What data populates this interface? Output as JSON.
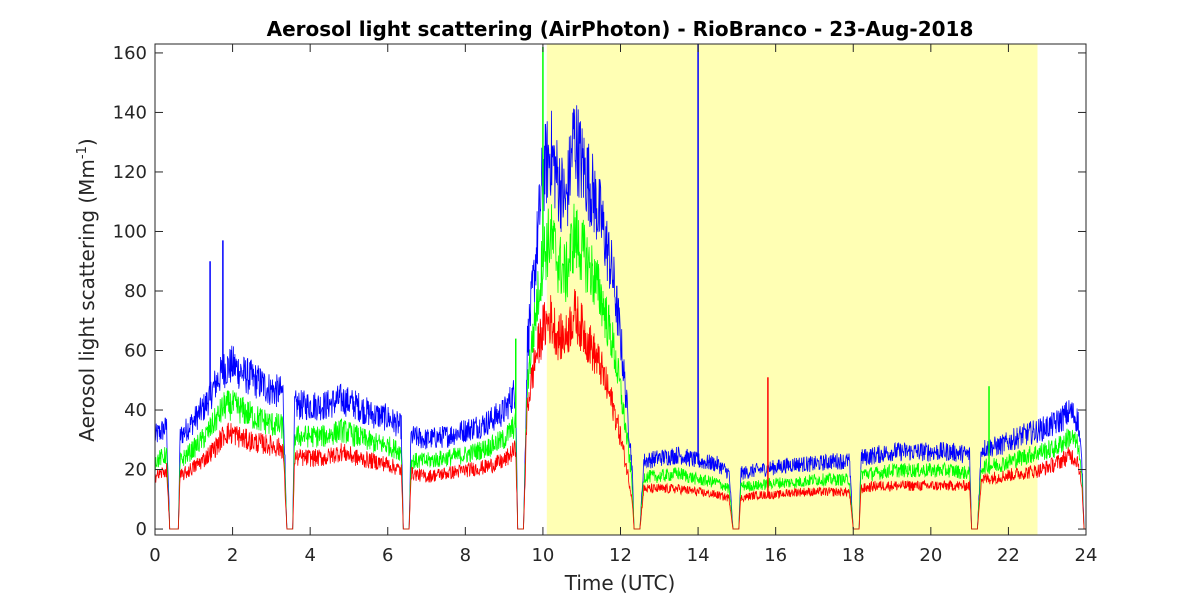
{
  "chart_data": {
    "type": "line",
    "title": "Aerosol light scattering (AirPhoton) - RioBranco - 23-Aug-2018",
    "xlabel": "Time (UTC)",
    "ylabel_main": "Aerosol light scattering (Mm",
    "ylabel_sup": "-1",
    "ylabel_close": ")",
    "xlim": [
      0,
      24
    ],
    "ylim": [
      -2,
      163
    ],
    "x_ticks": [
      0,
      2,
      4,
      6,
      8,
      10,
      12,
      14,
      16,
      18,
      20,
      22,
      24
    ],
    "y_ticks": [
      0,
      20,
      40,
      60,
      80,
      100,
      120,
      140,
      160
    ],
    "daylight_shading": {
      "x_start": 10.1,
      "x_end": 22.75,
      "color": "#ffffb4"
    },
    "grid": false,
    "legend": "none",
    "series": [
      {
        "color": "#0000ff",
        "points": [
          [
            0,
            30
          ],
          [
            0.3,
            33
          ],
          [
            0.38,
            0
          ],
          [
            0.6,
            0
          ],
          [
            0.65,
            30
          ],
          [
            1,
            35
          ],
          [
            1.3,
            40
          ],
          [
            1.6,
            48
          ],
          [
            1.8,
            52
          ],
          [
            2,
            53
          ],
          [
            2.3,
            50
          ],
          [
            2.6,
            48
          ],
          [
            3,
            45
          ],
          [
            3.3,
            44
          ],
          [
            3.4,
            0
          ],
          [
            3.55,
            0
          ],
          [
            3.6,
            40
          ],
          [
            4,
            40
          ],
          [
            4.4,
            40
          ],
          [
            4.8,
            42
          ],
          [
            5.2,
            40
          ],
          [
            5.6,
            37
          ],
          [
            6,
            36
          ],
          [
            6.35,
            33
          ],
          [
            6.4,
            0
          ],
          [
            6.55,
            0
          ],
          [
            6.6,
            30
          ],
          [
            7,
            29
          ],
          [
            7.5,
            30
          ],
          [
            8,
            32
          ],
          [
            8.5,
            34
          ],
          [
            9,
            38
          ],
          [
            9.3,
            45
          ],
          [
            9.35,
            0
          ],
          [
            9.5,
            0
          ],
          [
            9.6,
            60
          ],
          [
            9.8,
            85
          ],
          [
            10,
            115
          ],
          [
            10.2,
            122
          ],
          [
            10.4,
            112
          ],
          [
            10.6,
            105
          ],
          [
            10.8,
            128
          ],
          [
            11,
            118
          ],
          [
            11.2,
            112
          ],
          [
            11.5,
            100
          ],
          [
            11.8,
            82
          ],
          [
            12,
            62
          ],
          [
            12.2,
            35
          ],
          [
            12.3,
            20
          ],
          [
            12.35,
            0
          ],
          [
            12.5,
            0
          ],
          [
            12.6,
            22
          ],
          [
            13,
            23
          ],
          [
            13.5,
            24
          ],
          [
            14,
            22
          ],
          [
            14.5,
            21
          ],
          [
            14.8,
            18
          ],
          [
            14.9,
            0
          ],
          [
            15.05,
            0
          ],
          [
            15.1,
            18
          ],
          [
            15.5,
            19
          ],
          [
            16,
            20
          ],
          [
            16.5,
            21
          ],
          [
            17,
            21
          ],
          [
            17.5,
            22
          ],
          [
            17.9,
            22
          ],
          [
            18,
            0
          ],
          [
            18.15,
            0
          ],
          [
            18.2,
            23
          ],
          [
            18.6,
            24
          ],
          [
            19,
            25
          ],
          [
            19.5,
            25
          ],
          [
            20,
            25
          ],
          [
            20.5,
            25
          ],
          [
            21,
            24
          ],
          [
            21.05,
            0
          ],
          [
            21.2,
            0
          ],
          [
            21.3,
            26
          ],
          [
            21.8,
            27
          ],
          [
            22.3,
            30
          ],
          [
            22.8,
            32
          ],
          [
            23.2,
            34
          ],
          [
            23.6,
            38
          ],
          [
            23.8,
            35
          ],
          [
            23.9,
            20
          ],
          [
            23.95,
            0
          ],
          [
            24,
            0
          ]
        ]
      },
      {
        "color": "#00ff00",
        "points": [
          [
            0,
            22
          ],
          [
            0.3,
            24
          ],
          [
            0.38,
            0
          ],
          [
            0.6,
            0
          ],
          [
            0.65,
            22
          ],
          [
            1,
            26
          ],
          [
            1.3,
            30
          ],
          [
            1.6,
            36
          ],
          [
            1.8,
            40
          ],
          [
            2,
            40
          ],
          [
            2.3,
            38
          ],
          [
            2.6,
            36
          ],
          [
            3,
            34
          ],
          [
            3.3,
            33
          ],
          [
            3.4,
            0
          ],
          [
            3.55,
            0
          ],
          [
            3.6,
            30
          ],
          [
            4,
            30
          ],
          [
            4.4,
            30
          ],
          [
            4.8,
            32
          ],
          [
            5.2,
            30
          ],
          [
            5.6,
            28
          ],
          [
            6,
            27
          ],
          [
            6.35,
            25
          ],
          [
            6.4,
            0
          ],
          [
            6.55,
            0
          ],
          [
            6.6,
            22
          ],
          [
            7,
            22
          ],
          [
            7.5,
            23
          ],
          [
            8,
            24
          ],
          [
            8.5,
            26
          ],
          [
            9,
            29
          ],
          [
            9.3,
            34
          ],
          [
            9.35,
            0
          ],
          [
            9.5,
            0
          ],
          [
            9.6,
            48
          ],
          [
            9.8,
            68
          ],
          [
            10,
            88
          ],
          [
            10.2,
            95
          ],
          [
            10.4,
            86
          ],
          [
            10.6,
            82
          ],
          [
            10.8,
            95
          ],
          [
            11,
            90
          ],
          [
            11.2,
            85
          ],
          [
            11.5,
            75
          ],
          [
            11.8,
            60
          ],
          [
            12,
            45
          ],
          [
            12.2,
            26
          ],
          [
            12.3,
            15
          ],
          [
            12.35,
            0
          ],
          [
            12.5,
            0
          ],
          [
            12.6,
            17
          ],
          [
            13,
            17
          ],
          [
            13.5,
            18
          ],
          [
            14,
            16
          ],
          [
            14.5,
            15
          ],
          [
            14.8,
            13
          ],
          [
            14.9,
            0
          ],
          [
            15.05,
            0
          ],
          [
            15.1,
            14
          ],
          [
            15.5,
            14
          ],
          [
            16,
            15
          ],
          [
            16.5,
            15
          ],
          [
            17,
            16
          ],
          [
            17.5,
            16
          ],
          [
            17.9,
            16
          ],
          [
            18,
            0
          ],
          [
            18.15,
            0
          ],
          [
            18.2,
            18
          ],
          [
            18.6,
            18
          ],
          [
            19,
            19
          ],
          [
            19.5,
            19
          ],
          [
            20,
            19
          ],
          [
            20.5,
            19
          ],
          [
            21,
            18
          ],
          [
            21.05,
            0
          ],
          [
            21.2,
            0
          ],
          [
            21.3,
            20
          ],
          [
            21.8,
            21
          ],
          [
            22.3,
            23
          ],
          [
            22.8,
            25
          ],
          [
            23.2,
            26
          ],
          [
            23.6,
            30
          ],
          [
            23.8,
            27
          ],
          [
            23.9,
            15
          ],
          [
            23.95,
            0
          ],
          [
            24,
            0
          ]
        ]
      },
      {
        "color": "#ff0000",
        "points": [
          [
            0,
            17
          ],
          [
            0.3,
            19
          ],
          [
            0.38,
            0
          ],
          [
            0.6,
            0
          ],
          [
            0.65,
            17
          ],
          [
            1,
            20
          ],
          [
            1.3,
            23
          ],
          [
            1.6,
            27
          ],
          [
            1.8,
            31
          ],
          [
            2,
            31
          ],
          [
            2.3,
            29
          ],
          [
            2.6,
            28
          ],
          [
            3,
            27
          ],
          [
            3.3,
            26
          ],
          [
            3.4,
            0
          ],
          [
            3.55,
            0
          ],
          [
            3.6,
            23
          ],
          [
            4,
            23
          ],
          [
            4.4,
            23
          ],
          [
            4.8,
            25
          ],
          [
            5.2,
            23
          ],
          [
            5.6,
            22
          ],
          [
            6,
            21
          ],
          [
            6.35,
            19
          ],
          [
            6.4,
            0
          ],
          [
            6.55,
            0
          ],
          [
            6.6,
            18
          ],
          [
            7,
            17
          ],
          [
            7.5,
            18
          ],
          [
            8,
            19
          ],
          [
            8.5,
            20
          ],
          [
            9,
            22
          ],
          [
            9.3,
            26
          ],
          [
            9.35,
            0
          ],
          [
            9.5,
            0
          ],
          [
            9.6,
            40
          ],
          [
            9.8,
            55
          ],
          [
            10,
            65
          ],
          [
            10.2,
            68
          ],
          [
            10.4,
            62
          ],
          [
            10.6,
            62
          ],
          [
            10.8,
            70
          ],
          [
            11,
            65
          ],
          [
            11.2,
            60
          ],
          [
            11.5,
            52
          ],
          [
            11.8,
            40
          ],
          [
            12,
            30
          ],
          [
            12.2,
            17
          ],
          [
            12.3,
            10
          ],
          [
            12.35,
            0
          ],
          [
            12.5,
            0
          ],
          [
            12.6,
            13
          ],
          [
            13,
            13
          ],
          [
            13.5,
            13
          ],
          [
            14,
            12
          ],
          [
            14.5,
            11
          ],
          [
            14.8,
            10
          ],
          [
            14.9,
            0
          ],
          [
            15.05,
            0
          ],
          [
            15.1,
            10
          ],
          [
            15.5,
            11
          ],
          [
            16,
            11
          ],
          [
            16.5,
            12
          ],
          [
            17,
            12
          ],
          [
            17.5,
            12
          ],
          [
            17.9,
            12
          ],
          [
            18,
            0
          ],
          [
            18.15,
            0
          ],
          [
            18.2,
            13
          ],
          [
            18.6,
            14
          ],
          [
            19,
            14
          ],
          [
            19.5,
            14
          ],
          [
            20,
            14
          ],
          [
            20.5,
            14
          ],
          [
            21,
            14
          ],
          [
            21.05,
            0
          ],
          [
            21.2,
            0
          ],
          [
            21.3,
            16
          ],
          [
            21.8,
            17
          ],
          [
            22.3,
            18
          ],
          [
            22.8,
            19
          ],
          [
            23.2,
            21
          ],
          [
            23.6,
            24
          ],
          [
            23.8,
            22
          ],
          [
            23.9,
            12
          ],
          [
            23.95,
            0
          ],
          [
            24,
            0
          ]
        ]
      }
    ],
    "spikes": [
      {
        "color": "#0000ff",
        "x": 1.42,
        "y": 90
      },
      {
        "color": "#0000ff",
        "x": 1.75,
        "y": 97
      },
      {
        "color": "#00ff00",
        "x": 10.0,
        "y": 162
      },
      {
        "color": "#0000ff",
        "x": 14.0,
        "y": 163
      },
      {
        "color": "#ff0000",
        "x": 15.8,
        "y": 51
      },
      {
        "color": "#00ff00",
        "x": 21.5,
        "y": 48
      },
      {
        "color": "#00ff00",
        "x": 9.3,
        "y": 64
      }
    ]
  }
}
